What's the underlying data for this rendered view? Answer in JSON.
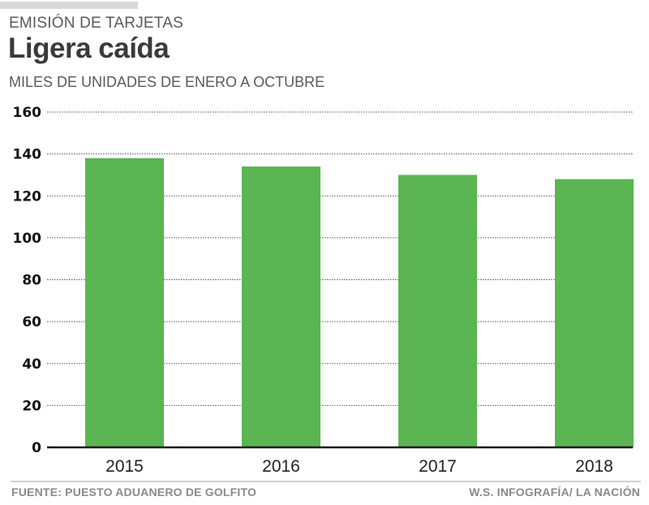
{
  "header": {
    "kicker": "EMISIÓN DE TARJETAS",
    "title": "Ligera caída",
    "subtitle": "MILES DE UNIDADES DE ENERO A OCTUBRE"
  },
  "footer": {
    "source": "FUENTE: PUESTO ADUANERO DE GOLFITO",
    "credit": "W.S. INFOGRAFÍA/ LA NACIÓN"
  },
  "colors": {
    "bar": "#5ab552",
    "axis": "#1a1a1a",
    "grid": "#555555"
  },
  "chart_data": {
    "type": "bar",
    "title": "Ligera caída",
    "subtitle": "MILES DE UNIDADES DE ENERO A OCTUBRE",
    "xlabel": "",
    "ylabel": "",
    "categories": [
      "2015",
      "2016",
      "2017",
      "2018"
    ],
    "values": [
      138,
      134,
      130,
      128
    ],
    "ylim": [
      0,
      160
    ],
    "yticks": [
      0,
      20,
      40,
      60,
      80,
      100,
      120,
      140,
      160
    ],
    "ytick_labels": [
      "0",
      "20",
      "40",
      "60",
      "80",
      "100",
      "120",
      "140",
      "160"
    ],
    "grid": true,
    "legend": "none"
  }
}
